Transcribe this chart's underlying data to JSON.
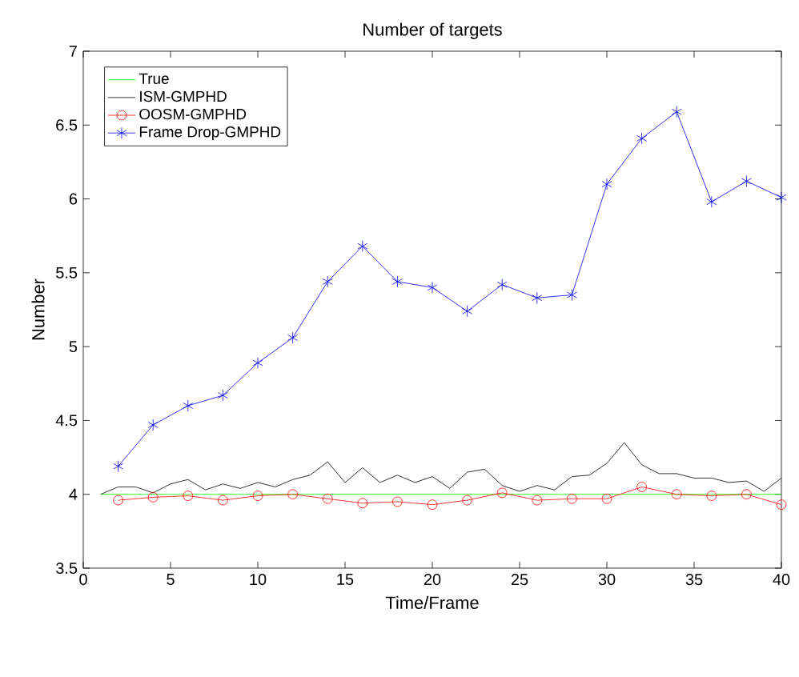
{
  "chart_data": {
    "type": "line",
    "title": "Number of targets",
    "xlabel": "Time/Frame",
    "ylabel": "Number",
    "xlim": [
      0,
      40
    ],
    "xticks": [
      0,
      5,
      10,
      15,
      20,
      25,
      30,
      35,
      40
    ],
    "ylim": [
      3.5,
      7
    ],
    "yticks": [
      3.5,
      4,
      4.5,
      5,
      5.5,
      6,
      6.5,
      7
    ],
    "legend": "top left",
    "grid": false,
    "series": [
      {
        "name": "True",
        "color": "#00ff00",
        "marker": "none",
        "x": [
          1,
          40
        ],
        "values": [
          4,
          4
        ]
      },
      {
        "name": "ISM-GMPHD",
        "color": "#000000",
        "marker": "none",
        "x": [
          1,
          2,
          3,
          4,
          5,
          6,
          7,
          8,
          9,
          10,
          11,
          12,
          13,
          14,
          15,
          16,
          17,
          18,
          19,
          20,
          21,
          22,
          23,
          24,
          25,
          26,
          27,
          28,
          29,
          30,
          31,
          32,
          33,
          34,
          35,
          36,
          37,
          38,
          39,
          40
        ],
        "values": [
          4.0,
          4.05,
          4.05,
          4.01,
          4.07,
          4.1,
          4.03,
          4.07,
          4.04,
          4.08,
          4.05,
          4.1,
          4.13,
          4.22,
          4.08,
          4.18,
          4.08,
          4.13,
          4.08,
          4.12,
          4.04,
          4.15,
          4.17,
          4.06,
          4.02,
          4.06,
          4.03,
          4.12,
          4.13,
          4.21,
          4.35,
          4.2,
          4.14,
          4.14,
          4.11,
          4.11,
          4.08,
          4.09,
          4.02,
          4.11
        ]
      },
      {
        "name": "OOSM-GMPHD",
        "color": "#ff0000",
        "marker": "circle",
        "x": [
          2,
          4,
          6,
          8,
          10,
          12,
          14,
          16,
          18,
          20,
          22,
          24,
          26,
          28,
          30,
          32,
          34,
          36,
          38,
          40
        ],
        "values": [
          3.96,
          3.98,
          3.99,
          3.96,
          3.99,
          4.0,
          3.97,
          3.94,
          3.95,
          3.93,
          3.96,
          4.01,
          3.96,
          3.97,
          3.97,
          4.05,
          4.0,
          3.99,
          4.0,
          3.93
        ]
      },
      {
        "name": "Frame Drop-GMPHD",
        "color": "#0000ff",
        "marker": "cross",
        "x": [
          2,
          4,
          6,
          8,
          10,
          12,
          14,
          16,
          18,
          20,
          22,
          24,
          26,
          28,
          30,
          32,
          34,
          36,
          38,
          40
        ],
        "values": [
          4.19,
          4.47,
          4.6,
          4.67,
          4.89,
          5.06,
          5.44,
          5.68,
          5.44,
          5.4,
          5.24,
          5.42,
          5.33,
          5.35,
          6.1,
          6.41,
          6.59,
          5.98,
          6.12,
          6.01
        ]
      }
    ]
  }
}
